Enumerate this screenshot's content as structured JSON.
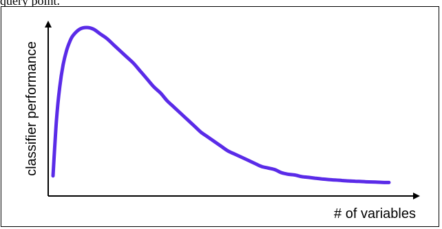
{
  "header_fragment": "query point.",
  "chart_data": {
    "type": "line",
    "title": "",
    "xlabel": "# of variables",
    "ylabel": "classifier performance",
    "grid": false,
    "legend": "none",
    "ticks": false,
    "series": [
      {
        "x": [
          0,
          1,
          2,
          3,
          4,
          5,
          6,
          8,
          10,
          12,
          14,
          16,
          18,
          20,
          22,
          24,
          26,
          28,
          30,
          32,
          34,
          36,
          38,
          40,
          42,
          44,
          46,
          48,
          50,
          52,
          54,
          56,
          58,
          60,
          62,
          64,
          66,
          68,
          70,
          72,
          74,
          76,
          78,
          80,
          82,
          84,
          86,
          88,
          90,
          92,
          94,
          96,
          98,
          100
        ],
        "y": [
          5,
          40,
          62,
          76,
          85,
          91,
          95,
          99,
          100,
          99,
          96,
          93,
          89,
          85,
          81,
          77,
          72,
          67,
          62,
          58,
          53,
          49,
          45,
          41,
          37,
          33,
          30,
          27,
          24,
          21,
          19,
          17,
          15,
          13,
          11,
          10,
          9,
          7,
          6,
          5.5,
          4.5,
          4,
          3.5,
          3,
          2.6,
          2.3,
          2,
          1.7,
          1.5,
          1.3,
          1.1,
          1,
          0.8,
          0.7
        ]
      }
    ],
    "colors": {
      "line": "#5a2be8",
      "axis": "#000000",
      "frame": "#000000"
    }
  }
}
